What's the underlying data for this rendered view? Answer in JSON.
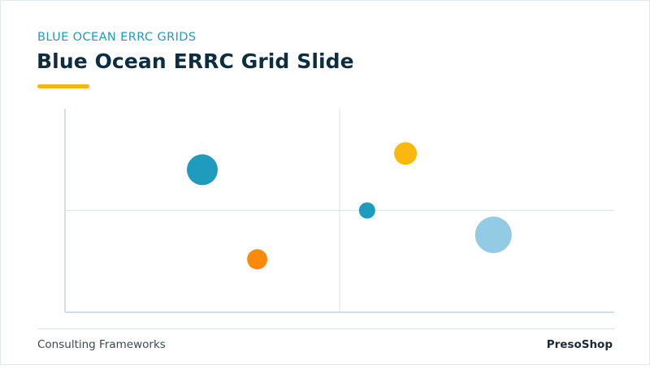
{
  "slide": {
    "eyebrow": "BLUE OCEAN ERRC GRIDS",
    "title": "Blue Ocean ERRC Grid Slide",
    "accent_color": "#f6b60f"
  },
  "footer": {
    "left": "Consulting Frameworks",
    "right": "PresoShop"
  },
  "chart_data": {
    "type": "scatter",
    "title": "",
    "xlabel": "",
    "ylabel": "",
    "xlim": [
      0,
      100
    ],
    "ylim": [
      0,
      100
    ],
    "grid": false,
    "quadrant_divider": {
      "x": 50,
      "y": 50
    },
    "series": [
      {
        "points": [
          {
            "x": 25,
            "y": 70,
            "size": 19,
            "color": "#1f9bbd"
          },
          {
            "x": 35,
            "y": 26,
            "size": 12.5,
            "color": "#f98a0c"
          },
          {
            "x": 62,
            "y": 78,
            "size": 14,
            "color": "#f9b80f"
          },
          {
            "x": 55,
            "y": 50,
            "size": 10,
            "color": "#1f9bbd"
          },
          {
            "x": 78,
            "y": 38,
            "size": 22.5,
            "color": "#93cbe4"
          }
        ]
      }
    ]
  }
}
